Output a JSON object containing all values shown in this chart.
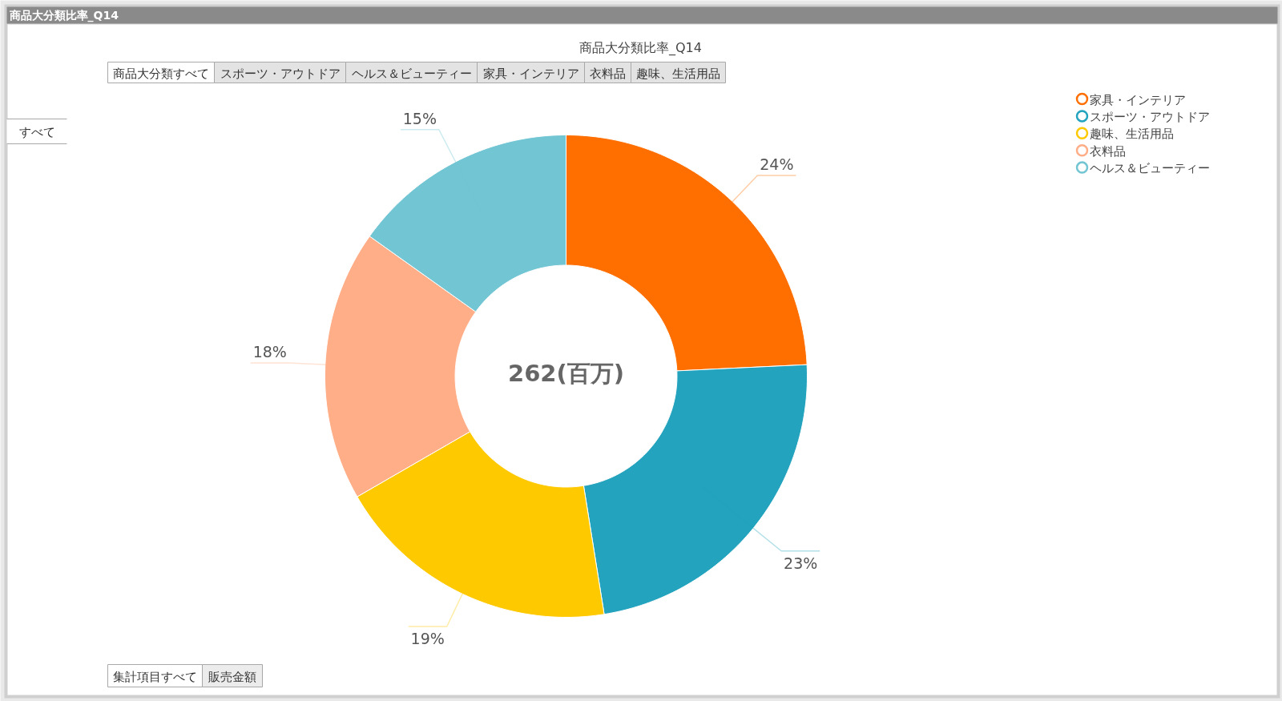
{
  "chart_data": {
    "type": "donut",
    "title": "商品大分類比率_Q14",
    "categories": [
      "家具・インテリア",
      "スポーツ・アウトドア",
      "趣味、生活用品",
      "衣料品",
      "ヘルス＆ビューティー"
    ],
    "values": [
      24,
      23,
      19,
      18,
      15
    ],
    "colors": [
      "#ff6f00",
      "#23a3bd",
      "#ffc900",
      "#ffae87",
      "#72c5d3"
    ],
    "value_labels": [
      "24%",
      "23%",
      "19%",
      "18%",
      "15%"
    ],
    "legend": "top right",
    "annotations": [
      "262(百万)",
      "商品大分類すべて",
      "スポーツ・アウトドア",
      "ヘルス＆ビューティー",
      "家具・インテリア",
      "衣料品",
      "趣味、生活用品",
      "すべて",
      "集計項目すべて",
      "販売金額"
    ]
  }
}
